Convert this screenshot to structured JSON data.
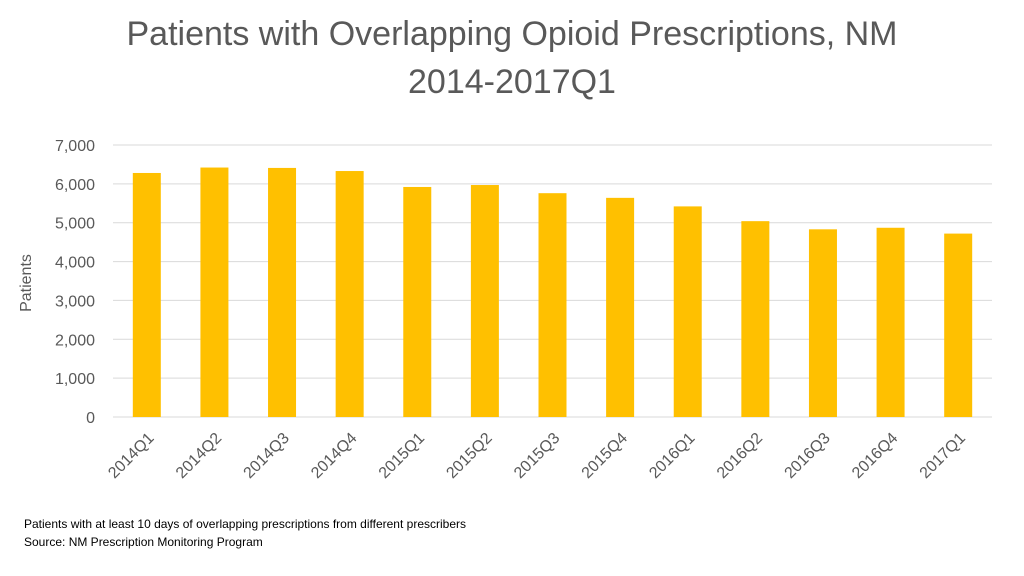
{
  "chart_data": {
    "type": "bar",
    "title": "Patients with Overlapping Opioid Prescriptions, NM",
    "subtitle": "2014-2017Q1",
    "xlabel": "",
    "ylabel": "Patients",
    "ylim": [
      0,
      7000
    ],
    "yticks": [
      0,
      1000,
      2000,
      3000,
      4000,
      5000,
      6000,
      7000
    ],
    "ytick_labels": [
      "0",
      "1,000",
      "2,000",
      "3,000",
      "4,000",
      "5,000",
      "6,000",
      "7,000"
    ],
    "grid": true,
    "categories": [
      "2014Q1",
      "2014Q2",
      "2014Q3",
      "2014Q4",
      "2015Q1",
      "2015Q2",
      "2015Q3",
      "2015Q4",
      "2016Q1",
      "2016Q2",
      "2016Q3",
      "2016Q4",
      "2017Q1"
    ],
    "values": [
      6280,
      6420,
      6410,
      6330,
      5920,
      5970,
      5760,
      5640,
      5420,
      5040,
      4830,
      4870,
      4720
    ],
    "bar_color": "#FFC000"
  },
  "footnotes": {
    "line1": "Patients with at least 10 days of overlapping prescriptions from different prescribers",
    "line2": "Source:  NM Prescription Monitoring Program"
  }
}
